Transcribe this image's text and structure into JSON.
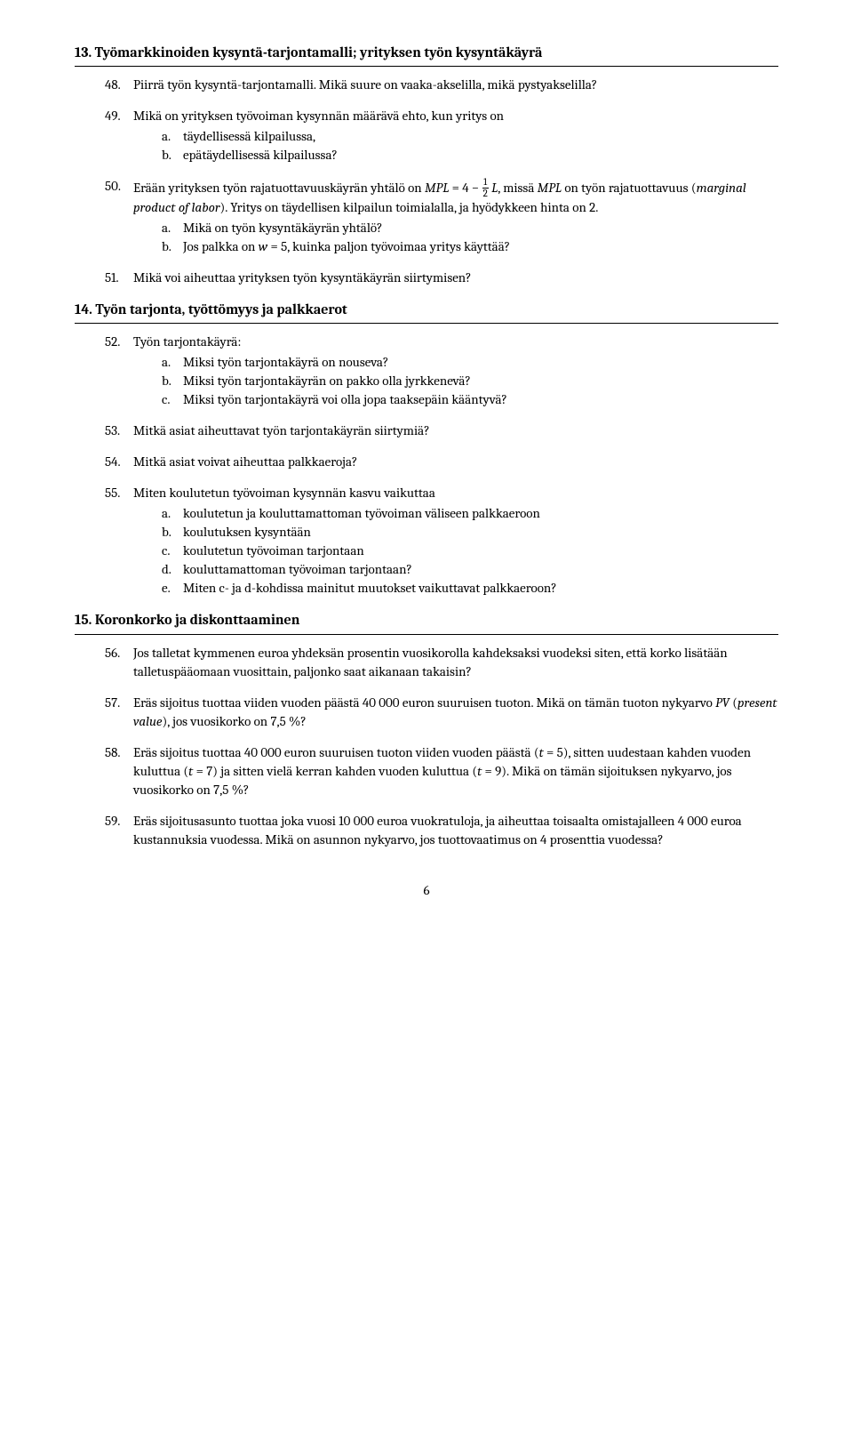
{
  "sections": [
    {
      "num": "13.",
      "title": "Työmarkkinoiden kysyntä-tarjontamalli; yrityksen työn kysyntäkäyrä",
      "questions": [
        {
          "num": "48.",
          "text": "Piirrä työn kysyntä-tarjontamalli. Mikä suure on vaaka-akselilla, mikä pystyakselilla?"
        },
        {
          "num": "49.",
          "text": "Mikä on yrityksen työvoiman kysynnän määrävä ehto, kun yritys on",
          "sub": [
            {
              "l": "a.",
              "t": "täydellisessä kilpailussa,"
            },
            {
              "l": "b.",
              "t": "epätäydellisessä kilpailussa?"
            }
          ]
        },
        {
          "num": "50.",
          "html": "q50",
          "sub": [
            {
              "l": "a.",
              "t": "Mikä on työn kysyntäkäyrän yhtälö?"
            },
            {
              "l": "b.",
              "html": "q50b"
            }
          ]
        },
        {
          "num": "51.",
          "text": "Mikä voi aiheuttaa yrityksen työn kysyntäkäyrän siirtymisen?"
        }
      ]
    },
    {
      "num": "14.",
      "title": "Työn tarjonta, työttömyys ja palkkaerot",
      "questions": [
        {
          "num": "52.",
          "text": "Työn tarjontakäyrä:",
          "sub_inline": true,
          "sub": [
            {
              "l": "a.",
              "t": "Miksi työn tarjontakäyrä on nouseva?"
            },
            {
              "l": "b.",
              "t": "Miksi työn tarjontakäyrän on pakko olla jyrkkenevä?"
            },
            {
              "l": "c.",
              "t": "Miksi työn tarjontakäyrä voi olla jopa taaksepäin kääntyvä?"
            }
          ]
        },
        {
          "num": "53.",
          "text": "Mitkä asiat aiheuttavat työn tarjontakäyrän siirtymiä?"
        },
        {
          "num": "54.",
          "text": "Mitkä asiat voivat aiheuttaa palkkaeroja?"
        },
        {
          "num": "55.",
          "text": "Miten koulutetun työvoiman kysynnän kasvu vaikuttaa",
          "sub_inline": true,
          "sub": [
            {
              "l": "a.",
              "t": "koulutetun ja kouluttamattoman työvoiman väliseen palkkaeroon"
            },
            {
              "l": "b.",
              "t": "koulutuksen kysyntään"
            },
            {
              "l": "c.",
              "t": "koulutetun työvoiman tarjontaan"
            },
            {
              "l": "d.",
              "t": "kouluttamattoman työvoiman tarjontaan?"
            },
            {
              "l": "e.",
              "t": "Miten c- ja d-kohdissa mainitut muutokset vaikuttavat palkkaeroon?"
            }
          ]
        }
      ]
    },
    {
      "num": "15.",
      "title": "Koronkorko ja diskonttaaminen",
      "questions": [
        {
          "num": "56.",
          "text": "Jos talletat kymmenen euroa yhdeksän prosentin vuosikorolla kahdeksaksi vuodeksi siten, että korko lisätään talletuspääomaan vuosittain, paljonko saat aikanaan takaisin?"
        },
        {
          "num": "57.",
          "html": "q57"
        },
        {
          "num": "58.",
          "html": "q58"
        },
        {
          "num": "59.",
          "text": "Eräs sijoitusasunto tuottaa joka vuosi 10 000 euroa vuokratuloja, ja aiheuttaa toisaalta omistajalleen 4 000 euroa kustannuksia vuodessa. Mikä on asunnon nykyarvo, jos tuottovaatimus on 4 prosenttia vuodessa?"
        }
      ]
    }
  ],
  "page": "6",
  "html": {
    "q50": "Erään yrityksen työn rajatuottavuuskäyrän yhtälö on <span class=\"math\">MPL</span> = 4 − <span class=\"frac\"><span class=\"top\">1</span><span class=\"bot\">2</span></span> <span class=\"math\">L</span>, missä <span class=\"math\">MPL</span> on työn rajatuottavuus (<span class=\"ital\">marginal product of labor</span>). Yritys on täydellisen kilpailun toimialalla, ja hyödykkeen hinta on 2.",
    "q50b": "Jos palkka on <span class=\"math\">w</span> = 5, kuinka paljon työvoimaa yritys käyttää?",
    "q57": "Eräs sijoitus tuottaa viiden vuoden päästä 40 000 euron suuruisen tuoton. Mikä on tämän tuoton nykyarvo <span class=\"ital\">PV</span> (<span class=\"ital\">present value</span>), jos vuosikorko on 7,5 %?",
    "q58": "Eräs sijoitus tuottaa 40 000 euron suuruisen tuoton viiden vuoden päästä (<span class=\"math\">t</span> = 5), sitten uudestaan kahden vuoden kuluttua (<span class=\"math\">t</span> = 7) ja sitten vielä kerran kahden vuoden kuluttua (<span class=\"math\">t</span> = 9). Mikä on tämän sijoituksen nykyarvo, jos vuosikorko on 7,5 %?"
  }
}
